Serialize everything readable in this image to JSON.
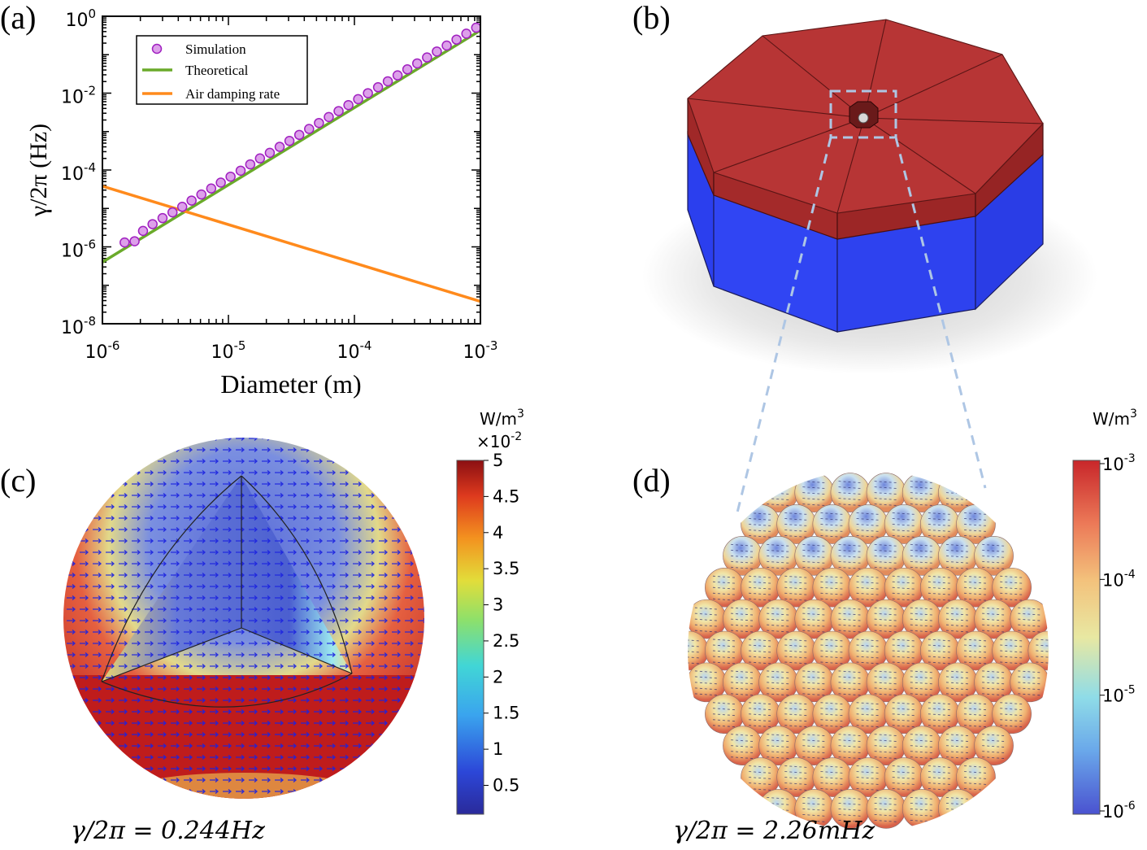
{
  "panels": {
    "a": {
      "letter": "(a)"
    },
    "b": {
      "letter": "(b)"
    },
    "c": {
      "letter": "(c)"
    },
    "d": {
      "letter": "(d)"
    }
  },
  "chart_data": {
    "type": "line",
    "xlabel": "Diameter (m)",
    "ylabel": "γ/2π (Hz)",
    "xscale": "log",
    "yscale": "log",
    "xlim": [
      1e-06,
      0.001
    ],
    "ylim": [
      1e-08,
      1
    ],
    "xtick_labels": [
      {
        "base": "10",
        "exp": "-6",
        "value": 1e-06
      },
      {
        "base": "10",
        "exp": "-5",
        "value": 1e-05
      },
      {
        "base": "10",
        "exp": "-4",
        "value": 0.0001
      },
      {
        "base": "10",
        "exp": "-3",
        "value": 0.001
      }
    ],
    "ytick_labels": [
      {
        "base": "10",
        "exp": "0",
        "value": 1
      },
      {
        "base": "10",
        "exp": "-2",
        "value": 0.01
      },
      {
        "base": "10",
        "exp": "-4",
        "value": 0.0001
      },
      {
        "base": "10",
        "exp": "-6",
        "value": 1e-06
      },
      {
        "base": "10",
        "exp": "-8",
        "value": 1e-08
      }
    ],
    "legend_position": "top-left",
    "series": [
      {
        "name": "Simulation",
        "kind": "scatter",
        "color": "#cc55dd",
        "x": [
          1.5e-06,
          1.8e-06,
          2.1e-06,
          2.5e-06,
          3e-06,
          3.6e-06,
          4.3e-06,
          5.1e-06,
          6.1e-06,
          7.3e-06,
          8.7e-06,
          1.04e-05,
          1.25e-05,
          1.49e-05,
          1.78e-05,
          2.13e-05,
          2.55e-05,
          3.05e-05,
          3.65e-05,
          4.37e-05,
          5.23e-05,
          6.26e-05,
          7.49e-05,
          8.96e-05,
          0.000107,
          0.000128,
          0.000154,
          0.000184,
          0.00022,
          0.000263,
          0.000315,
          0.000377,
          0.000451,
          0.00054,
          0.000646,
          0.000773,
          0.000925
        ],
        "y": [
          1.3e-06,
          1.4e-06,
          2.6e-06,
          3.9e-06,
          5.6e-06,
          7.9e-06,
          1.1e-05,
          1.6e-05,
          2.3e-05,
          3.3e-05,
          4.7e-05,
          6.7e-05,
          9.6e-05,
          0.00014,
          0.0002,
          0.00028,
          0.0004,
          0.00057,
          0.00082,
          0.00117,
          0.00167,
          0.00239,
          0.00341,
          0.00488,
          0.00697,
          0.00996,
          0.0142,
          0.0203,
          0.029,
          0.0415,
          0.0593,
          0.0847,
          0.121,
          0.173,
          0.247,
          0.353,
          0.505
        ]
      },
      {
        "name": "Theoretical",
        "kind": "line",
        "color": "#6aaa2a",
        "x": [
          1e-06,
          0.001
        ],
        "y": [
          4e-07,
          0.43
        ]
      },
      {
        "name": "Air damping rate",
        "kind": "line",
        "color": "#ff8a1c",
        "x": [
          1e-06,
          0.001
        ],
        "y": [
          3.8e-05,
          3.8e-08
        ]
      }
    ]
  },
  "colorbar_c": {
    "unit": "W/m",
    "unit_exp": "3",
    "multiplier": "×10",
    "multiplier_exp": "-2",
    "ticks": [
      "5",
      "4.5",
      "4",
      "3.5",
      "3",
      "2.5",
      "2",
      "1.5",
      "1",
      "0.5"
    ]
  },
  "colorbar_d": {
    "unit": "W/m",
    "unit_exp": "3",
    "ticks": [
      {
        "base": "10",
        "exp": "-3"
      },
      {
        "base": "10",
        "exp": "-4"
      },
      {
        "base": "10",
        "exp": "-5"
      },
      {
        "base": "10",
        "exp": "-6"
      }
    ]
  },
  "captions": {
    "c": "γ/2π = 0.244Hz",
    "d": "γ/2π = 2.26mHz"
  },
  "colors": {
    "red_block": "#b33030",
    "blue_block": "#2a3ff0",
    "zoom_dash": "#aec6e4",
    "sphere_hot": "#c8171b",
    "sphere_cold": "#3f56c9",
    "arrow": "#1b22e0"
  }
}
